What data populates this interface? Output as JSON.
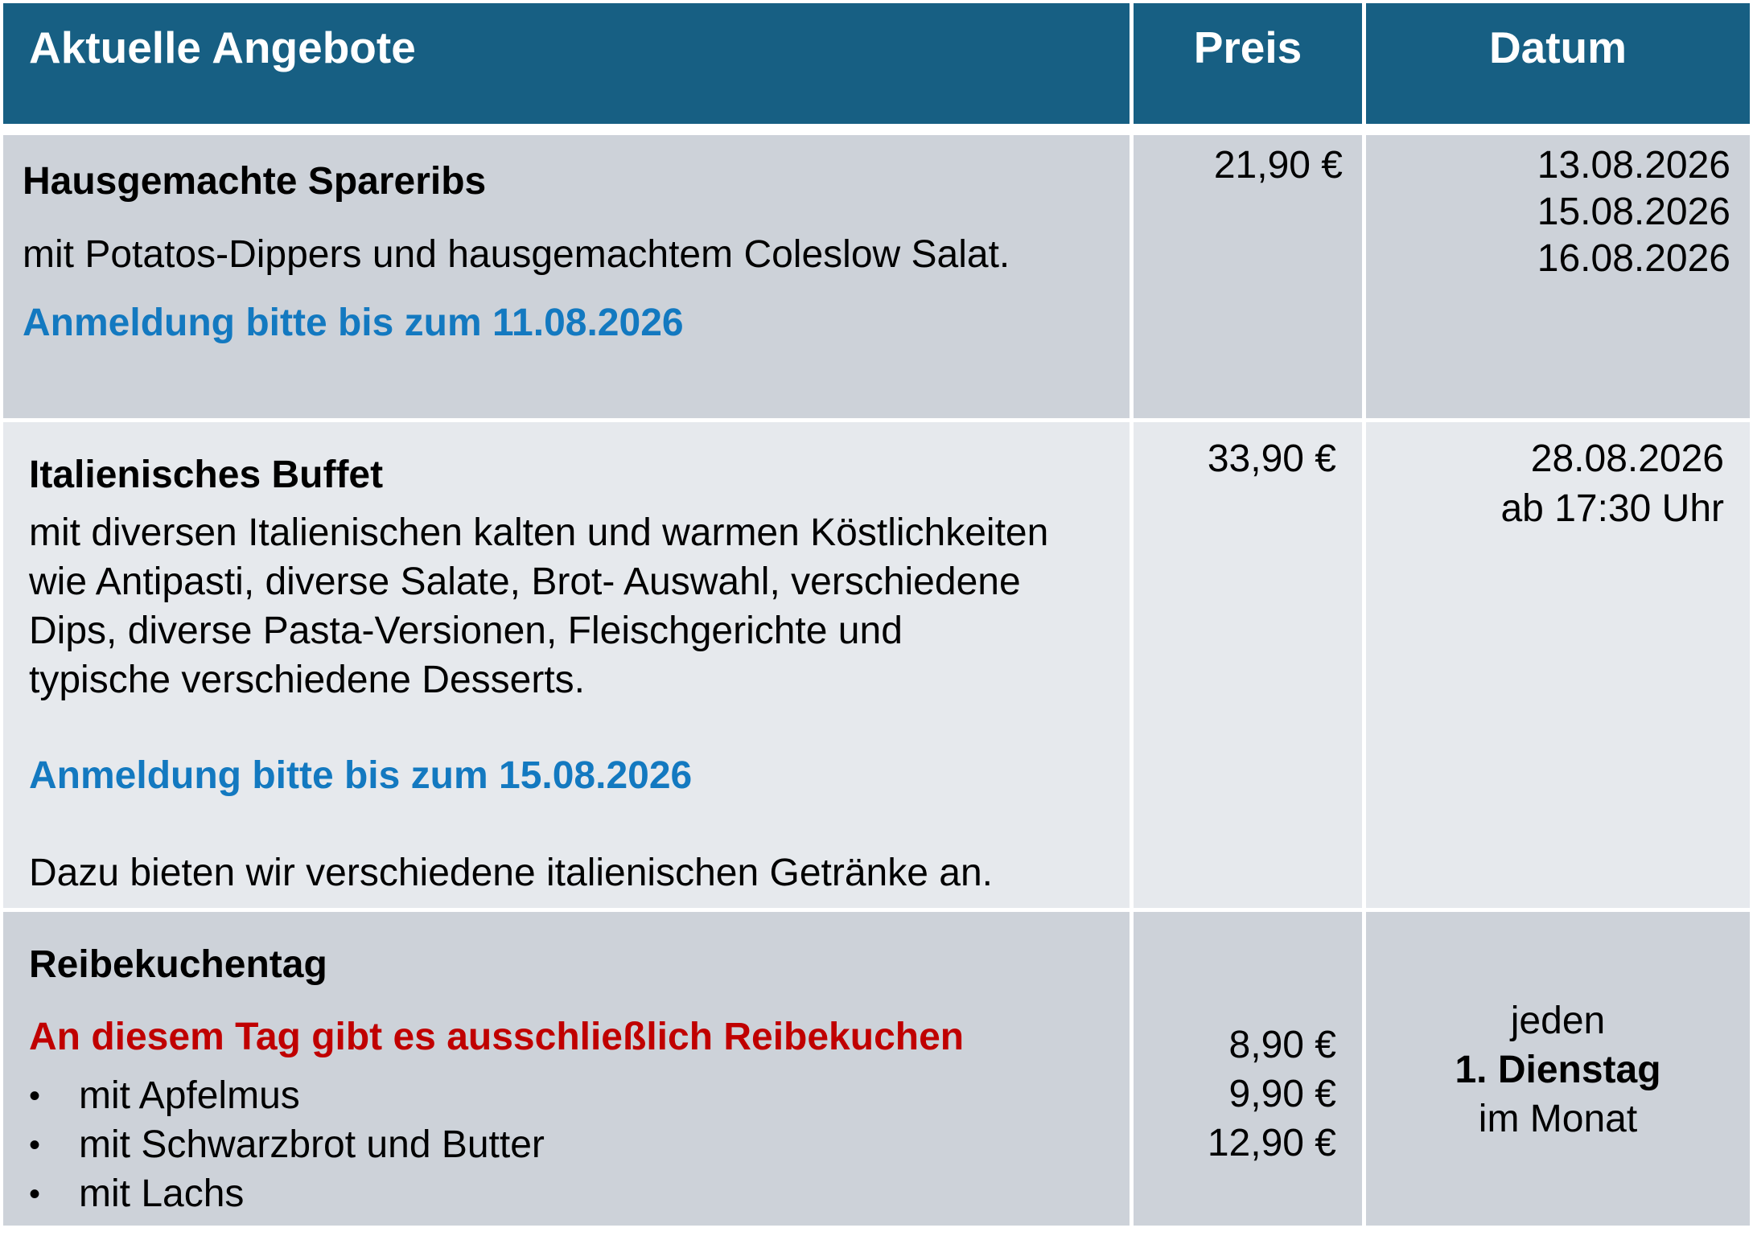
{
  "header": {
    "col_offer": "Aktuelle Angebote",
    "col_price": "Preis",
    "col_date": "Datum",
    "bg_color": "#175F83"
  },
  "offers": [
    {
      "title": "Hausgemachte Spareribs",
      "description": "mit Potatos-Dippers und hausgemachtem Coleslow Salat.",
      "registration": "Anmeldung bitte bis zum 11.08.2026",
      "price": "21,90 €",
      "dates": [
        "13.08.2026",
        "15.08.2026",
        "16.08.2026"
      ]
    },
    {
      "title": "Italienisches Buffet",
      "description_lines": [
        "mit diversen Italienischen kalten und warmen Köstlichkeiten",
        "wie Antipasti, diverse Salate, Brot- Auswahl, verschiedene",
        "Dips, diverse Pasta-Versionen, Fleischgerichte und",
        "typische verschiedene Desserts."
      ],
      "registration": "Anmeldung bitte bis zum 15.08.2026",
      "note": "Dazu bieten wir verschiedene italienischen Getränke an.",
      "price": "33,90 €",
      "date": "28.08.2026",
      "time": "ab 17:30 Uhr"
    },
    {
      "title": "Reibekuchentag",
      "highlight": "An diesem Tag gibt es ausschließlich Reibekuchen",
      "bullet_symbol": "•",
      "items": [
        {
          "label": "mit Apfelmus",
          "price": "8,90 €"
        },
        {
          "label": "mit Schwarzbrot und Butter",
          "price": "9,90 €"
        },
        {
          "label": "mit Lachs",
          "price": "12,90 €"
        }
      ],
      "schedule": [
        "jeden",
        "1. Dienstag",
        "im Monat"
      ]
    }
  ],
  "colors": {
    "row_dark": "#CDD2D9",
    "row_light": "#E6E9ED",
    "registration_blue": "#1379C0",
    "highlight_red": "#C00000"
  }
}
